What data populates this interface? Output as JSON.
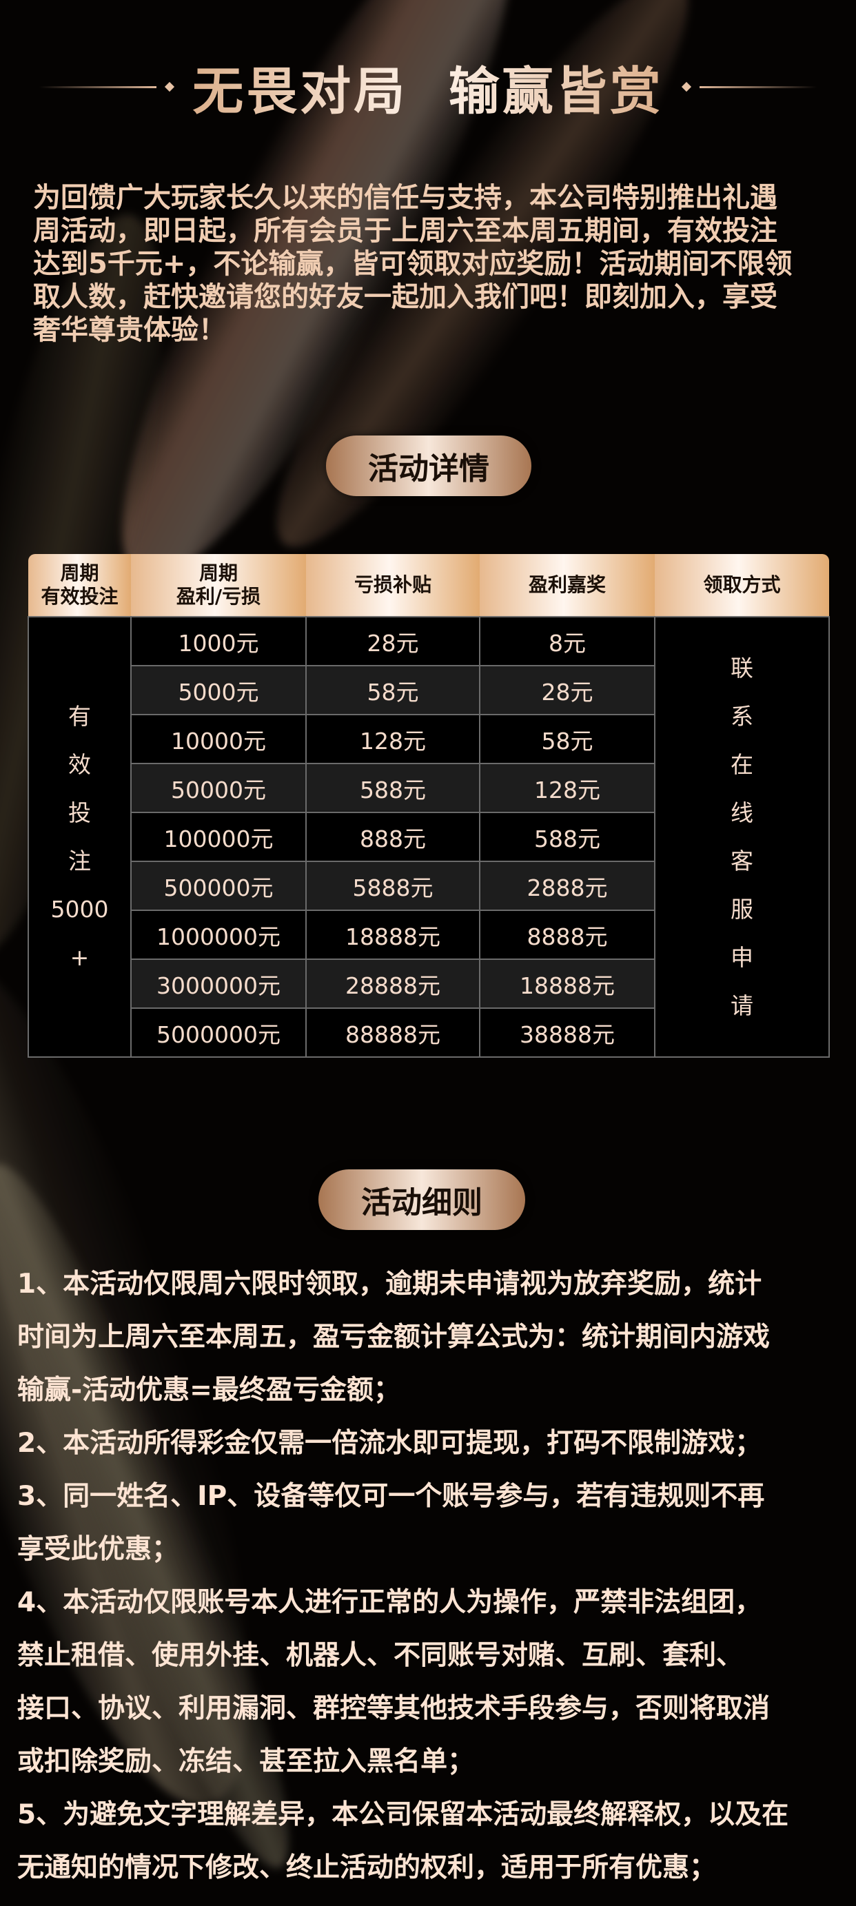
{
  "title": "无畏对局  输赢皆赏",
  "intro_lines": [
    "为回馈广大玩家长久以来的信任与支持，本公司特别推出礼遇",
    "周活动，即日起，所有会员于上周六至本周五期间，有效投注",
    "达到5千元+，不论输赢，皆可领取对应奖励！活动期间不限领",
    "取人数，赶快邀请您的好友一起加入我们吧！即刻加入，享受",
    "奢华尊贵体验！"
  ],
  "details_label": "活动详情",
  "table": {
    "headers": [
      "周期\n有效投注",
      "周期\n盈利/亏损",
      "亏损补贴",
      "盈利嘉奖",
      "领取方式"
    ],
    "side_label": [
      "有",
      "效",
      "投",
      "注",
      "5000",
      "+"
    ],
    "claim_label": [
      "联",
      "系",
      "在",
      "线",
      "客",
      "服",
      "申",
      "请"
    ],
    "rows": [
      [
        "1000元",
        "28元",
        "8元"
      ],
      [
        "5000元",
        "58元",
        "28元"
      ],
      [
        "10000元",
        "128元",
        "58元"
      ],
      [
        "50000元",
        "588元",
        "128元"
      ],
      [
        "100000元",
        "888元",
        "588元"
      ],
      [
        "500000元",
        "5888元",
        "2888元"
      ],
      [
        "1000000元",
        "18888元",
        "8888元"
      ],
      [
        "3000000元",
        "28888元",
        "18888元"
      ],
      [
        "5000000元",
        "88888元",
        "38888元"
      ]
    ]
  },
  "rules_label": "活动细则",
  "rules_lines": [
    "1、本活动仅限周六限时领取，逾期未申请视为放弃奖励，统计",
    "时间为上周六至本周五，盈亏金额计算公式为：统计期间内游戏",
    "输赢-活动优惠=最终盈亏金额；",
    "2、本活动所得彩金仅需一倍流水即可提现，打码不限制游戏；",
    "3、同一姓名、IP、设备等仅可一个账号参与，若有违规则不再",
    "享受此优惠；",
    "4、本活动仅限账号本人进行正常的人为操作，严禁非法组团，",
    "禁止租借、使用外挂、机器人、不同账号对赌、互刷、套利、",
    "接口、协议、利用漏洞、群控等其他技术手段参与，否则将取消",
    "或扣除奖励、冻结、甚至拉入黑名单；",
    "5、为避免文字理解差异，本公司保留本活动最终解释权，以及在",
    "无通知的情况下修改、终止活动的权利，适用于所有优惠；"
  ],
  "colors": {
    "gold": "#e2ab72",
    "text_cream": "#f0cdb2",
    "background": "#050302"
  }
}
